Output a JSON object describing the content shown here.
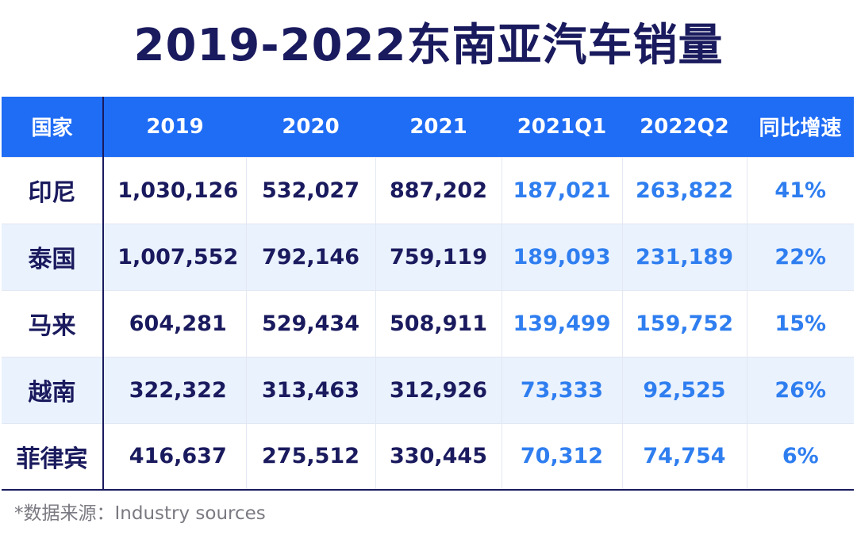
{
  "title": "2019-2022东南亚汽车销量",
  "chart_data": {
    "type": "table",
    "title": "2019-2022东南亚汽车销量",
    "columns": [
      "国家",
      "2019",
      "2020",
      "2021",
      "2021Q1",
      "2022Q2",
      "同比增速"
    ],
    "rows": [
      [
        "印尼",
        "1,030,126",
        "532,027",
        "887,202",
        "187,021",
        "263,822",
        "41%"
      ],
      [
        "泰国",
        "1,007,552",
        "792,146",
        "759,119",
        "189,093",
        "231,189",
        "22%"
      ],
      [
        "马来",
        "604,281",
        "529,434",
        "508,911",
        "139,499",
        "159,752",
        "15%"
      ],
      [
        "越南",
        "322,322",
        "313,463",
        "312,926",
        "73,333",
        "92,525",
        "26%"
      ],
      [
        "菲律宾",
        "416,637",
        "275,512",
        "330,445",
        "70,312",
        "74,754",
        "6%"
      ]
    ]
  },
  "source": "*数据来源：Industry sources",
  "colors": {
    "header_bg": "#1f6cf5",
    "title_text": "#1a1a5e",
    "highlight_text": "#2f7ef0",
    "alt_row_bg": "#eaf2fe"
  }
}
